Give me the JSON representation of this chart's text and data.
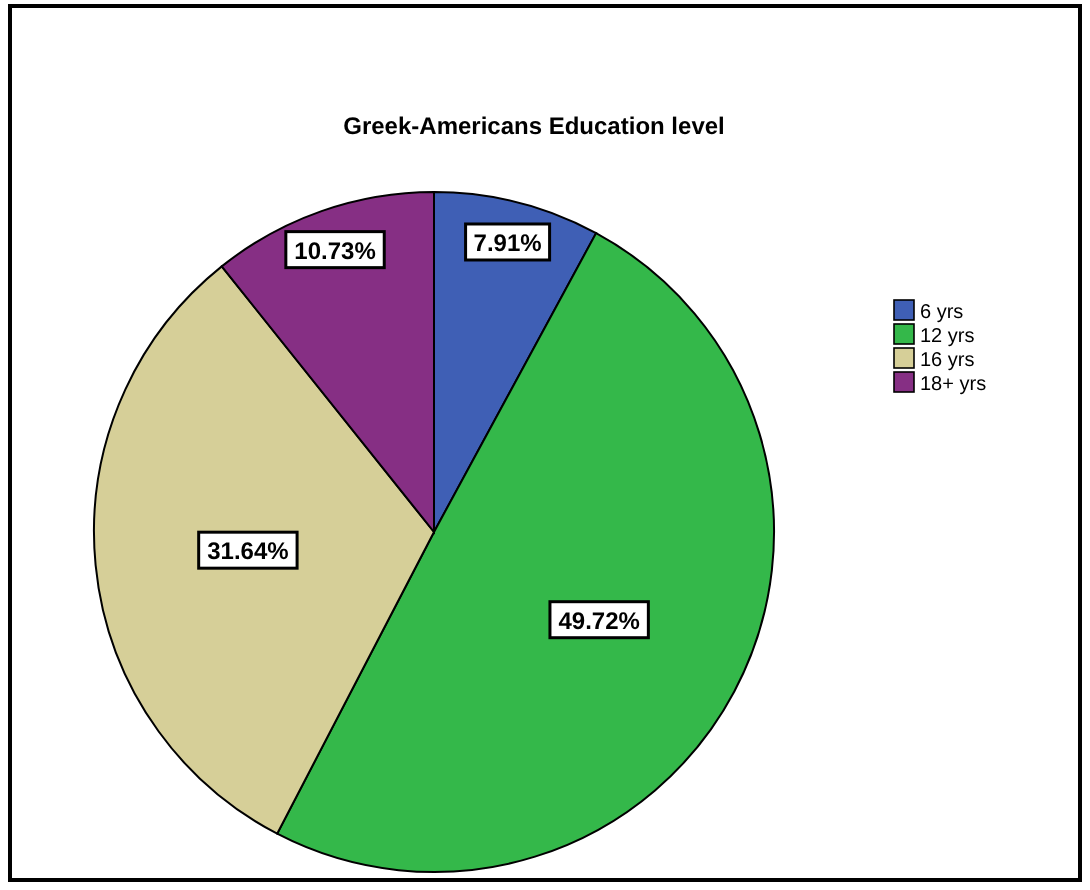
{
  "chart_data": {
    "type": "pie",
    "title": "Greek-Americans Education level",
    "categories": [
      "6 yrs",
      "12 yrs",
      "16 yrs",
      "18+ yrs"
    ],
    "values": [
      7.91,
      49.72,
      31.64,
      10.73
    ],
    "colors": [
      "#3f5fb5",
      "#34b84a",
      "#d6cf98",
      "#862f84"
    ],
    "value_labels": [
      "7.91%",
      "49.72%",
      "31.64%",
      "10.73%"
    ],
    "legend": "right"
  }
}
